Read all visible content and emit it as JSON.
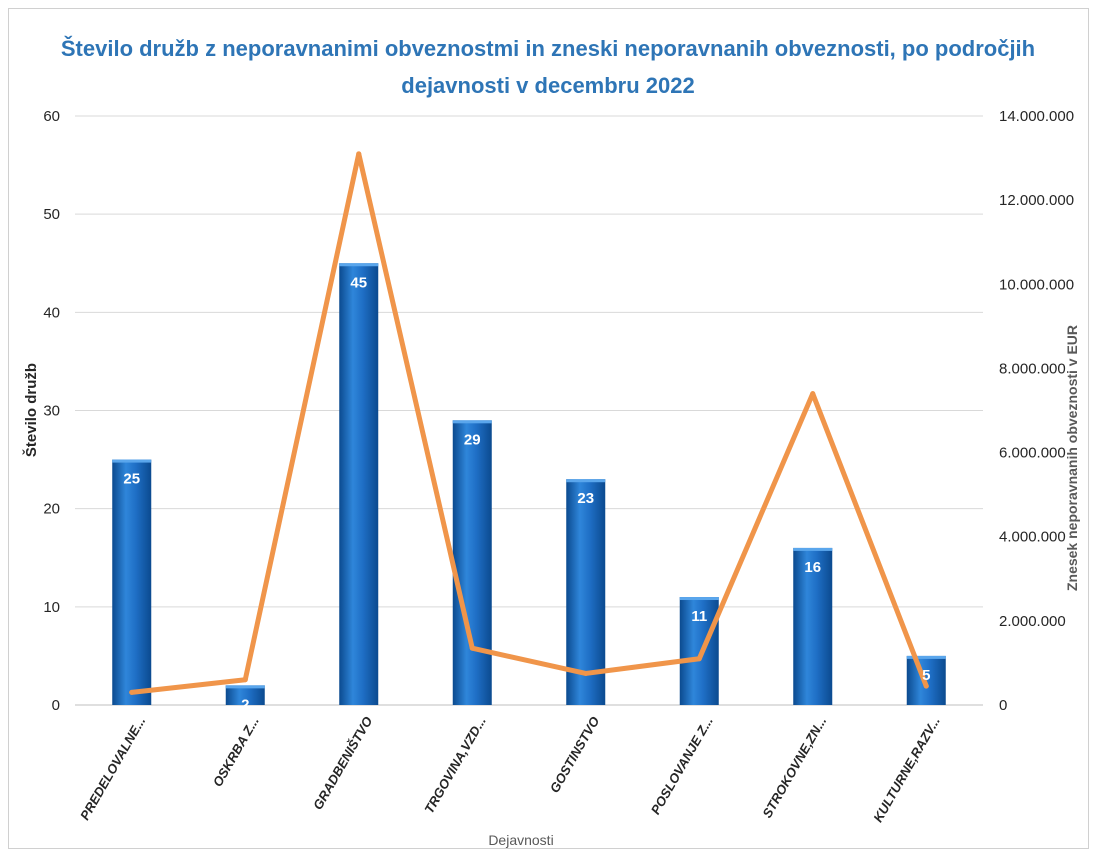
{
  "chart_data": {
    "type": "bar",
    "title_line1": "Število družb z neporavnanimi obveznostmi in zneski neporavnanih obveznosti, po področjih",
    "title_line2": "dejavnosti v decembru 2022",
    "xlabel": "Dejavnosti",
    "ylabel": "Število družb",
    "y2label": "Znesek neporavnanih obveznosti  v  EUR",
    "categories": [
      "PREDELOVALNE...",
      "OSKRBA Z...",
      "GRADBENIŠTVO",
      "TRGOVINA,VZD...",
      "GOSTINSTVO",
      "POSLOVANJE Z...",
      "STROKOVNE,ZN...",
      "KULTURNE,RAZV..."
    ],
    "ylim": [
      0,
      60
    ],
    "yticks": [
      "0",
      "10",
      "20",
      "30",
      "40",
      "50",
      "60"
    ],
    "y2lim": [
      0,
      14000000
    ],
    "y2ticks": [
      "0",
      "2.000.000",
      "4.000.000",
      "6.000.000",
      "8.000.000",
      "10.000.000",
      "12.000.000",
      "14.000.000"
    ],
    "series": [
      {
        "type": "bar",
        "axis": "left",
        "values": [
          25,
          2,
          45,
          29,
          23,
          11,
          16,
          5
        ],
        "labels": [
          "25",
          "2",
          "45",
          "29",
          "23",
          "11",
          "16",
          "5"
        ]
      },
      {
        "type": "line",
        "axis": "right",
        "values": [
          300000,
          600000,
          13100000,
          1350000,
          750000,
          1100000,
          7400000,
          450000
        ]
      }
    ],
    "colors": {
      "bar": "#1F6FC6",
      "bar_dark": "#0B4A8F",
      "line": "#F0954A",
      "grid": "#D9D9D9",
      "title": "#2E75B6"
    },
    "grid": true,
    "legend": "none"
  }
}
